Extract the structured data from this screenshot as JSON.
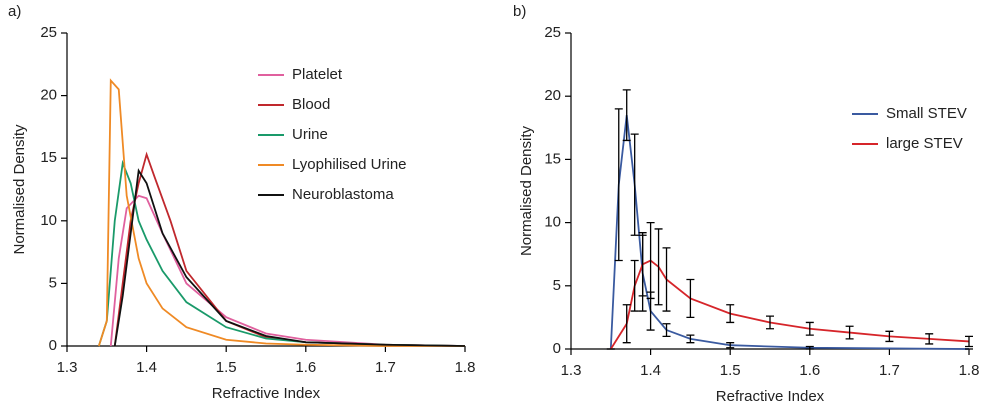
{
  "chart_data": [
    {
      "type": "line",
      "label": "a)",
      "xlabel": "Refractive Index",
      "ylabel": "Normalised Density",
      "xlim": [
        1.3,
        1.8
      ],
      "xticks": [
        1.3,
        1.4,
        1.5,
        1.6,
        1.7,
        1.8
      ],
      "ylim": [
        0,
        25
      ],
      "yticks": [
        0,
        5,
        10,
        15,
        20,
        25
      ],
      "grid": false,
      "legend": "upper right",
      "series": [
        {
          "name": "Platelet",
          "color": "#e0609e",
          "x": [
            1.355,
            1.365,
            1.375,
            1.39,
            1.4,
            1.42,
            1.45,
            1.5,
            1.55,
            1.6,
            1.7,
            1.8
          ],
          "values": [
            0,
            7,
            11,
            12,
            11.8,
            9,
            5,
            2.3,
            1,
            0.5,
            0.1,
            0
          ]
        },
        {
          "name": "Blood",
          "color": "#c0282d",
          "x": [
            1.36,
            1.37,
            1.38,
            1.39,
            1.4,
            1.41,
            1.43,
            1.45,
            1.5,
            1.55,
            1.6,
            1.7,
            1.8
          ],
          "values": [
            0,
            5,
            10,
            13,
            15.3,
            13.5,
            10,
            6,
            2,
            0.7,
            0.3,
            0.1,
            0
          ]
        },
        {
          "name": "Urine",
          "color": "#1a9a6a",
          "x": [
            1.34,
            1.35,
            1.36,
            1.37,
            1.38,
            1.39,
            1.4,
            1.42,
            1.45,
            1.5,
            1.55,
            1.6,
            1.7,
            1.8
          ],
          "values": [
            0,
            2,
            10,
            14.6,
            13,
            10,
            8.5,
            6,
            3.5,
            1.5,
            0.6,
            0.3,
            0.1,
            0
          ]
        },
        {
          "name": "Lyophilised Urine",
          "color": "#ef8a25",
          "x": [
            1.34,
            1.35,
            1.355,
            1.365,
            1.375,
            1.39,
            1.4,
            1.42,
            1.45,
            1.5,
            1.55,
            1.6,
            1.7,
            1.8
          ],
          "values": [
            0,
            2,
            21.2,
            20.5,
            12,
            7,
            5,
            3,
            1.5,
            0.5,
            0.2,
            0.1,
            0,
            0
          ]
        },
        {
          "name": "Neuroblastoma",
          "color": "#111111",
          "x": [
            1.36,
            1.37,
            1.38,
            1.39,
            1.4,
            1.42,
            1.45,
            1.5,
            1.55,
            1.6,
            1.7,
            1.8
          ],
          "values": [
            0,
            4,
            9,
            14,
            13,
            9,
            5.5,
            2,
            0.8,
            0.3,
            0.1,
            0
          ]
        }
      ]
    },
    {
      "type": "line",
      "label": "b)",
      "xlabel": "Refractive Index",
      "ylabel": "Normalised Density",
      "xlim": [
        1.3,
        1.8
      ],
      "xticks": [
        1.3,
        1.4,
        1.5,
        1.6,
        1.7,
        1.8
      ],
      "ylim": [
        0,
        25
      ],
      "yticks": [
        0,
        5,
        10,
        15,
        20,
        25
      ],
      "grid": false,
      "legend": "upper right",
      "error_color": "#000000",
      "series": [
        {
          "name": "Small STEV",
          "color": "#3a5aa0",
          "x": [
            1.35,
            1.36,
            1.37,
            1.38,
            1.39,
            1.4,
            1.42,
            1.45,
            1.5,
            1.6,
            1.8
          ],
          "values": [
            0,
            13,
            18.5,
            13,
            6,
            3,
            1.5,
            0.8,
            0.3,
            0.1,
            0
          ],
          "errors": [
            0,
            6,
            2,
            4,
            3,
            1.5,
            0.5,
            0.3,
            0.2,
            0.1,
            0
          ]
        },
        {
          "name": "large STEV",
          "color": "#d6252a",
          "x": [
            1.35,
            1.37,
            1.38,
            1.39,
            1.4,
            1.41,
            1.42,
            1.45,
            1.5,
            1.55,
            1.6,
            1.65,
            1.7,
            1.75,
            1.8
          ],
          "values": [
            0,
            2,
            5,
            6.7,
            7,
            6.5,
            5.5,
            4,
            2.8,
            2.1,
            1.6,
            1.3,
            1,
            0.8,
            0.6
          ],
          "errors": [
            0,
            1.5,
            2,
            2.5,
            3,
            3,
            2.5,
            1.5,
            0.7,
            0.5,
            0.5,
            0.5,
            0.4,
            0.4,
            0.4
          ]
        }
      ]
    }
  ]
}
